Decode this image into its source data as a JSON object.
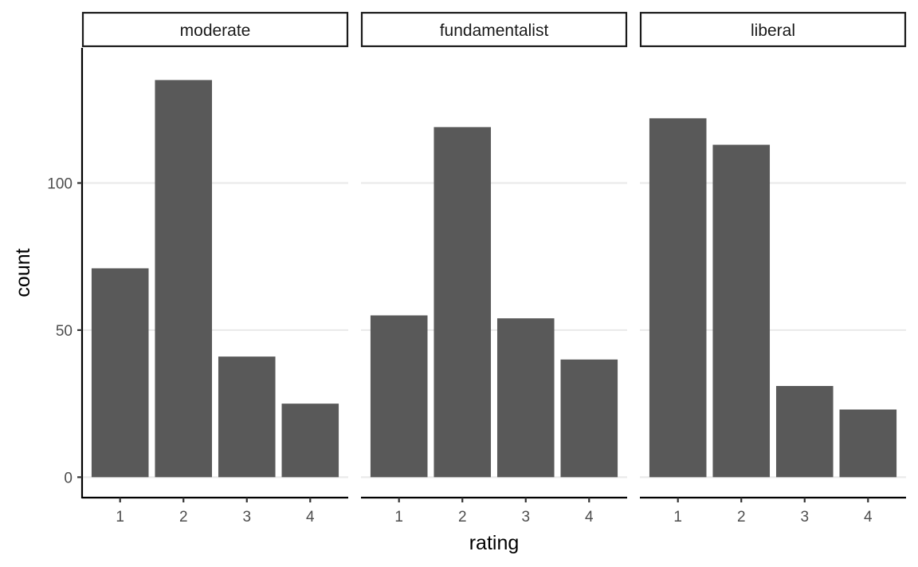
{
  "chart_data": {
    "type": "bar",
    "facet_by": "panel",
    "xlabel": "rating",
    "ylabel": "count",
    "categories": [
      "1",
      "2",
      "3",
      "4"
    ],
    "ylim": [
      0,
      139
    ],
    "yticks": [
      0,
      50,
      100
    ],
    "grid": "horizontal major",
    "bar_color": "#595959",
    "panels": [
      {
        "name": "moderate",
        "values": [
          71,
          135,
          41,
          25
        ]
      },
      {
        "name": "fundamentalist",
        "values": [
          55,
          119,
          54,
          40
        ]
      },
      {
        "name": "liberal",
        "values": [
          122,
          113,
          31,
          23
        ]
      }
    ]
  }
}
